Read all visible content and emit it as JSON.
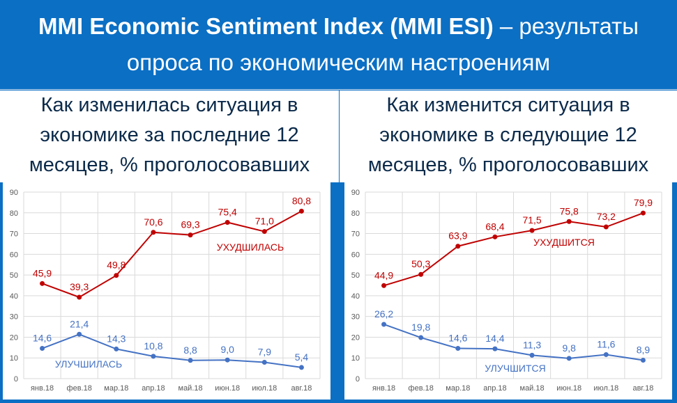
{
  "header": {
    "title_bold": "MMI Economic Sentiment Index (MMI ESI)",
    "title_rest": " – результаты",
    "title_line2": "опроса по экономическим настроениям"
  },
  "panels": {
    "left": {
      "lines": [
        "Как изменилась ситуация в",
        "экономике за последние 12",
        "месяцев, % проголосовавших"
      ]
    },
    "right": {
      "lines": [
        "Как изменится ситуация в",
        "экономике в следующие 12",
        "месяцев, % проголосовавших"
      ]
    }
  },
  "colors": {
    "background": "#0b6fc4",
    "worse": "#c00000",
    "better": "#4472c4",
    "grid": "#d9d9d9"
  },
  "chart_data": [
    {
      "type": "line",
      "categories": [
        "янв.18",
        "фев.18",
        "мар.18",
        "апр.18",
        "май.18",
        "июн.18",
        "июл.18",
        "авг.18"
      ],
      "ylim": [
        0,
        90
      ],
      "yticks": [
        0,
        10,
        20,
        30,
        40,
        50,
        60,
        70,
        80,
        90
      ],
      "grid": true,
      "series": [
        {
          "name": "УХУДШИЛАСЬ",
          "color": "#c00000",
          "values": [
            45.9,
            39.3,
            49.8,
            70.6,
            69.3,
            75.4,
            71.0,
            80.8
          ],
          "labels": [
            "45,9",
            "39,3",
            "49,8",
            "70,6",
            "69,3",
            "75,4",
            "71,0",
            "80,8"
          ]
        },
        {
          "name": "УЛУЧШИЛАСЬ",
          "color": "#4472c4",
          "values": [
            14.6,
            21.4,
            14.3,
            10.8,
            8.8,
            9.0,
            7.9,
            5.4
          ],
          "labels": [
            "14,6",
            "21,4",
            "14,3",
            "10,8",
            "8,8",
            "9,0",
            "7,9",
            "5,4"
          ]
        }
      ]
    },
    {
      "type": "line",
      "categories": [
        "янв.18",
        "фев.18",
        "мар.18",
        "апр.18",
        "май.18",
        "июн.18",
        "июл.18",
        "авг.18"
      ],
      "ylim": [
        0,
        90
      ],
      "yticks": [
        0,
        10,
        20,
        30,
        40,
        50,
        60,
        70,
        80,
        90
      ],
      "grid": true,
      "series": [
        {
          "name": "УХУДШИТСЯ",
          "color": "#c00000",
          "values": [
            44.9,
            50.3,
            63.9,
            68.4,
            71.5,
            75.8,
            73.2,
            79.9
          ],
          "labels": [
            "44,9",
            "50,3",
            "63,9",
            "68,4",
            "71,5",
            "75,8",
            "73,2",
            "79,9"
          ]
        },
        {
          "name": "УЛУЧШИТСЯ",
          "color": "#4472c4",
          "values": [
            26.2,
            19.8,
            14.6,
            14.4,
            11.3,
            9.8,
            11.6,
            8.9
          ],
          "labels": [
            "26,2",
            "19,8",
            "14,6",
            "14,4",
            "11,3",
            "9,8",
            "11,6",
            "8,9"
          ]
        }
      ]
    }
  ]
}
